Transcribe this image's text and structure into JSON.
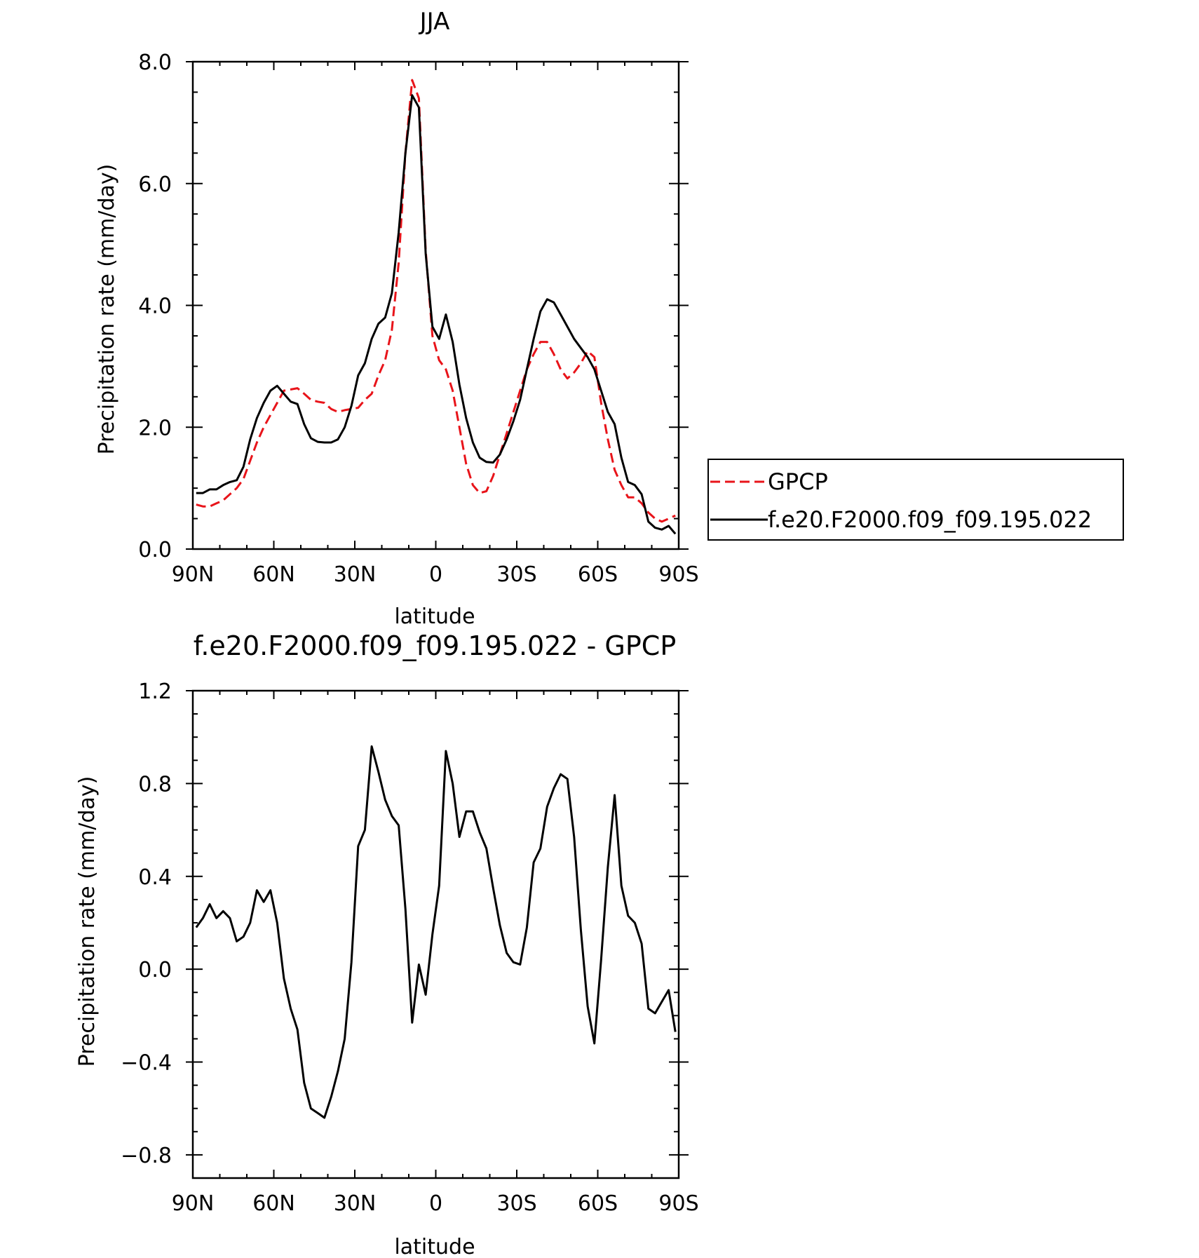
{
  "chart_data": [
    {
      "type": "line",
      "title": "JJA",
      "xlabel": "latitude",
      "ylabel": "Precipitation rate (mm/day)",
      "xlim": [
        90,
        -90
      ],
      "ylim": [
        0,
        8
      ],
      "xticks": [
        90,
        60,
        30,
        0,
        -30,
        -60,
        -90
      ],
      "xtick_labels": [
        "90N",
        "60N",
        "30N",
        "0",
        "30S",
        "60S",
        "90S"
      ],
      "yticks": [
        0,
        2,
        4,
        6,
        8
      ],
      "ytick_labels": [
        "0.0",
        "2.0",
        "4.0",
        "6.0",
        "8.0"
      ],
      "legend": "right",
      "series": [
        {
          "name": "GPCP",
          "color": "#e8141a",
          "dash": "dashed",
          "x": [
            88.75,
            86.25,
            83.75,
            81.25,
            78.75,
            76.25,
            73.75,
            71.25,
            68.75,
            66.25,
            63.75,
            61.25,
            58.75,
            56.25,
            53.75,
            51.25,
            48.75,
            46.25,
            43.75,
            41.25,
            38.75,
            36.25,
            33.75,
            31.25,
            28.75,
            26.25,
            23.75,
            21.25,
            18.75,
            16.25,
            13.75,
            11.25,
            8.75,
            6.25,
            3.75,
            1.25,
            -1.25,
            -3.75,
            -6.25,
            -8.75,
            -11.25,
            -13.75,
            -16.25,
            -18.75,
            -21.25,
            -23.75,
            -26.25,
            -28.75,
            -31.25,
            -33.75,
            -36.25,
            -38.75,
            -41.25,
            -43.75,
            -46.25,
            -48.75,
            -51.25,
            -53.75,
            -56.25,
            -58.75,
            -61.25,
            -63.75,
            -66.25,
            -68.75,
            -71.25,
            -73.75,
            -76.25,
            -78.75,
            -81.25,
            -83.75,
            -86.25,
            -88.75
          ],
          "y": [
            0.73,
            0.7,
            0.7,
            0.75,
            0.8,
            0.9,
            1.0,
            1.15,
            1.45,
            1.75,
            2.0,
            2.2,
            2.4,
            2.6,
            2.62,
            2.64,
            2.55,
            2.45,
            2.42,
            2.4,
            2.3,
            2.25,
            2.28,
            2.3,
            2.32,
            2.45,
            2.55,
            2.85,
            3.1,
            3.6,
            4.7,
            6.5,
            7.7,
            7.4,
            4.9,
            3.5,
            3.1,
            2.95,
            2.6,
            2.0,
            1.4,
            1.05,
            0.92,
            0.95,
            1.2,
            1.55,
            1.9,
            2.25,
            2.6,
            2.95,
            3.2,
            3.4,
            3.4,
            3.2,
            2.95,
            2.8,
            2.9,
            3.05,
            3.25,
            3.15,
            2.4,
            1.8,
            1.3,
            1.05,
            0.85,
            0.85,
            0.75,
            0.6,
            0.5,
            0.45,
            0.5,
            0.55
          ]
        },
        {
          "name": "f.e20.F2000.f09_f09.195.022",
          "color": "#000000",
          "dash": "solid",
          "x": [
            88.75,
            86.25,
            83.75,
            81.25,
            78.75,
            76.25,
            73.75,
            71.25,
            68.75,
            66.25,
            63.75,
            61.25,
            58.75,
            56.25,
            53.75,
            51.25,
            48.75,
            46.25,
            43.75,
            41.25,
            38.75,
            36.25,
            33.75,
            31.25,
            28.75,
            26.25,
            23.75,
            21.25,
            18.75,
            16.25,
            13.75,
            11.25,
            8.75,
            6.25,
            3.75,
            1.25,
            -1.25,
            -3.75,
            -6.25,
            -8.75,
            -11.25,
            -13.75,
            -16.25,
            -18.75,
            -21.25,
            -23.75,
            -26.25,
            -28.75,
            -31.25,
            -33.75,
            -36.25,
            -38.75,
            -41.25,
            -43.75,
            -46.25,
            -48.75,
            -51.25,
            -53.75,
            -56.25,
            -58.75,
            -61.25,
            -63.75,
            -66.25,
            -68.75,
            -71.25,
            -73.75,
            -76.25,
            -78.75,
            -81.25,
            -83.75,
            -86.25,
            -88.75
          ],
          "y": [
            0.92,
            0.92,
            0.98,
            0.98,
            1.05,
            1.1,
            1.13,
            1.35,
            1.8,
            2.15,
            2.4,
            2.6,
            2.68,
            2.55,
            2.42,
            2.38,
            2.05,
            1.82,
            1.76,
            1.75,
            1.75,
            1.8,
            2.0,
            2.35,
            2.85,
            3.05,
            3.45,
            3.7,
            3.8,
            4.2,
            5.2,
            6.5,
            7.45,
            7.25,
            4.85,
            3.65,
            3.45,
            3.85,
            3.4,
            2.7,
            2.15,
            1.75,
            1.5,
            1.43,
            1.42,
            1.55,
            1.8,
            2.1,
            2.45,
            2.95,
            3.45,
            3.9,
            4.1,
            4.05,
            3.85,
            3.65,
            3.45,
            3.3,
            3.15,
            2.95,
            2.6,
            2.25,
            2.05,
            1.5,
            1.1,
            1.05,
            0.9,
            0.45,
            0.35,
            0.32,
            0.38,
            0.25
          ]
        }
      ]
    },
    {
      "type": "line",
      "title": "f.e20.F2000.f09_f09.195.022 - GPCP",
      "xlabel": "latitude",
      "ylabel": "Precipitation rate (mm/day)",
      "xlim": [
        90,
        -90
      ],
      "ylim": [
        -0.9,
        1.2
      ],
      "xticks": [
        90,
        60,
        30,
        0,
        -30,
        -60,
        -90
      ],
      "xtick_labels": [
        "90N",
        "60N",
        "30N",
        "0",
        "30S",
        "60S",
        "90S"
      ],
      "yticks": [
        -0.8,
        -0.4,
        0.0,
        0.4,
        0.8,
        1.2
      ],
      "ytick_labels": [
        "−0.8",
        "−0.4",
        "0.0",
        "0.4",
        "0.8",
        "1.2"
      ],
      "series": [
        {
          "color": "#000000",
          "dash": "solid",
          "x": [
            88.75,
            86.25,
            83.75,
            81.25,
            78.75,
            76.25,
            73.75,
            71.25,
            68.75,
            66.25,
            63.75,
            61.25,
            58.75,
            56.25,
            53.75,
            51.25,
            48.75,
            46.25,
            43.75,
            41.25,
            38.75,
            36.25,
            33.75,
            31.25,
            28.75,
            26.25,
            23.75,
            21.25,
            18.75,
            16.25,
            13.75,
            11.25,
            8.75,
            6.25,
            3.75,
            1.25,
            -1.25,
            -3.75,
            -6.25,
            -8.75,
            -11.25,
            -13.75,
            -16.25,
            -18.75,
            -21.25,
            -23.75,
            -26.25,
            -28.75,
            -31.25,
            -33.75,
            -36.25,
            -38.75,
            -41.25,
            -43.75,
            -46.25,
            -48.75,
            -51.25,
            -53.75,
            -56.25,
            -58.75,
            -61.25,
            -63.75,
            -66.25,
            -68.75,
            -71.25,
            -73.75,
            -76.25,
            -78.75,
            -81.25,
            -83.75,
            -86.25,
            -88.75
          ],
          "y": [
            0.18,
            0.22,
            0.28,
            0.22,
            0.25,
            0.22,
            0.12,
            0.14,
            0.2,
            0.34,
            0.29,
            0.34,
            0.2,
            -0.04,
            -0.17,
            -0.26,
            -0.49,
            -0.6,
            -0.62,
            -0.64,
            -0.55,
            -0.44,
            -0.3,
            0.03,
            0.53,
            0.6,
            0.96,
            0.85,
            0.73,
            0.66,
            0.62,
            0.26,
            -0.23,
            0.02,
            -0.11,
            0.15,
            0.36,
            0.94,
            0.8,
            0.57,
            0.68,
            0.68,
            0.59,
            0.52,
            0.35,
            0.19,
            0.07,
            0.03,
            0.02,
            0.18,
            0.46,
            0.52,
            0.7,
            0.78,
            0.84,
            0.82,
            0.57,
            0.17,
            -0.16,
            -0.32,
            0.04,
            0.44,
            0.75,
            0.36,
            0.23,
            0.2,
            0.11,
            -0.17,
            -0.19,
            -0.14,
            -0.09,
            -0.27
          ]
        }
      ]
    }
  ]
}
